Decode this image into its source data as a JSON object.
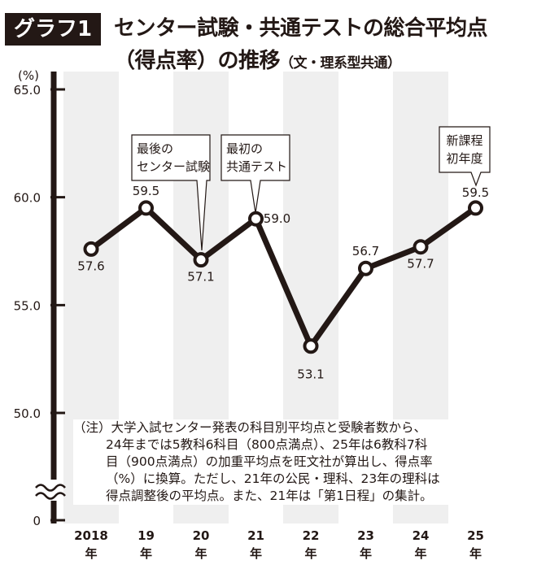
{
  "header": {
    "badge": "グラフ1",
    "title_line1": "センター試験・共通テストの総合平均点",
    "title_line2": "（得点率）の推移",
    "title_sub": "（文・理系型共通）"
  },
  "chart_data": {
    "type": "line",
    "categories": [
      "2018年",
      "19年",
      "20年",
      "21年",
      "22年",
      "23年",
      "24年",
      "25年"
    ],
    "category_top": [
      "2018",
      "19",
      "20",
      "21",
      "22",
      "23",
      "24",
      "25"
    ],
    "category_bottom": [
      "年",
      "年",
      "年",
      "年",
      "年",
      "年",
      "年",
      "年"
    ],
    "values": [
      57.6,
      59.5,
      57.1,
      59.0,
      53.1,
      56.7,
      57.7,
      59.5
    ],
    "value_labels": [
      "57.6",
      "59.5",
      "57.1",
      "59.0",
      "53.1",
      "56.7",
      "57.7",
      "59.5"
    ],
    "ylabel": "(%)",
    "yticks": [
      {
        "value": 65,
        "label": "65.0"
      },
      {
        "value": 60,
        "label": "60.0"
      },
      {
        "value": 55,
        "label": "55.0"
      },
      {
        "value": 50,
        "label": "50.0"
      },
      {
        "value": 0,
        "label": "0"
      }
    ],
    "ylim": [
      50,
      65
    ],
    "axis_break": true,
    "alternating_column_shading": true,
    "line_color": "#231815",
    "shade_color": "#efefef",
    "annotations": [
      {
        "category_index": 2,
        "lines": [
          "最後の",
          "センター試験"
        ]
      },
      {
        "category_index": 3,
        "lines": [
          "最初の",
          "共通テスト"
        ]
      },
      {
        "category_index": 7,
        "lines": [
          "新課程",
          "初年度"
        ]
      }
    ]
  },
  "note": {
    "lines": [
      "（注）大学入試センター発表の科目別平均点と受験者数から、",
      "24年までは5教科6科目（800点満点）、25年は6教科7科",
      "目（900点満点）の加重平均点を旺文社が算出し、得点率",
      "（%）に換算。ただし、21年の公民・理科、23年の理科は",
      "得点調整後の平均点。また、21年は「第1日程」の集計。"
    ]
  }
}
